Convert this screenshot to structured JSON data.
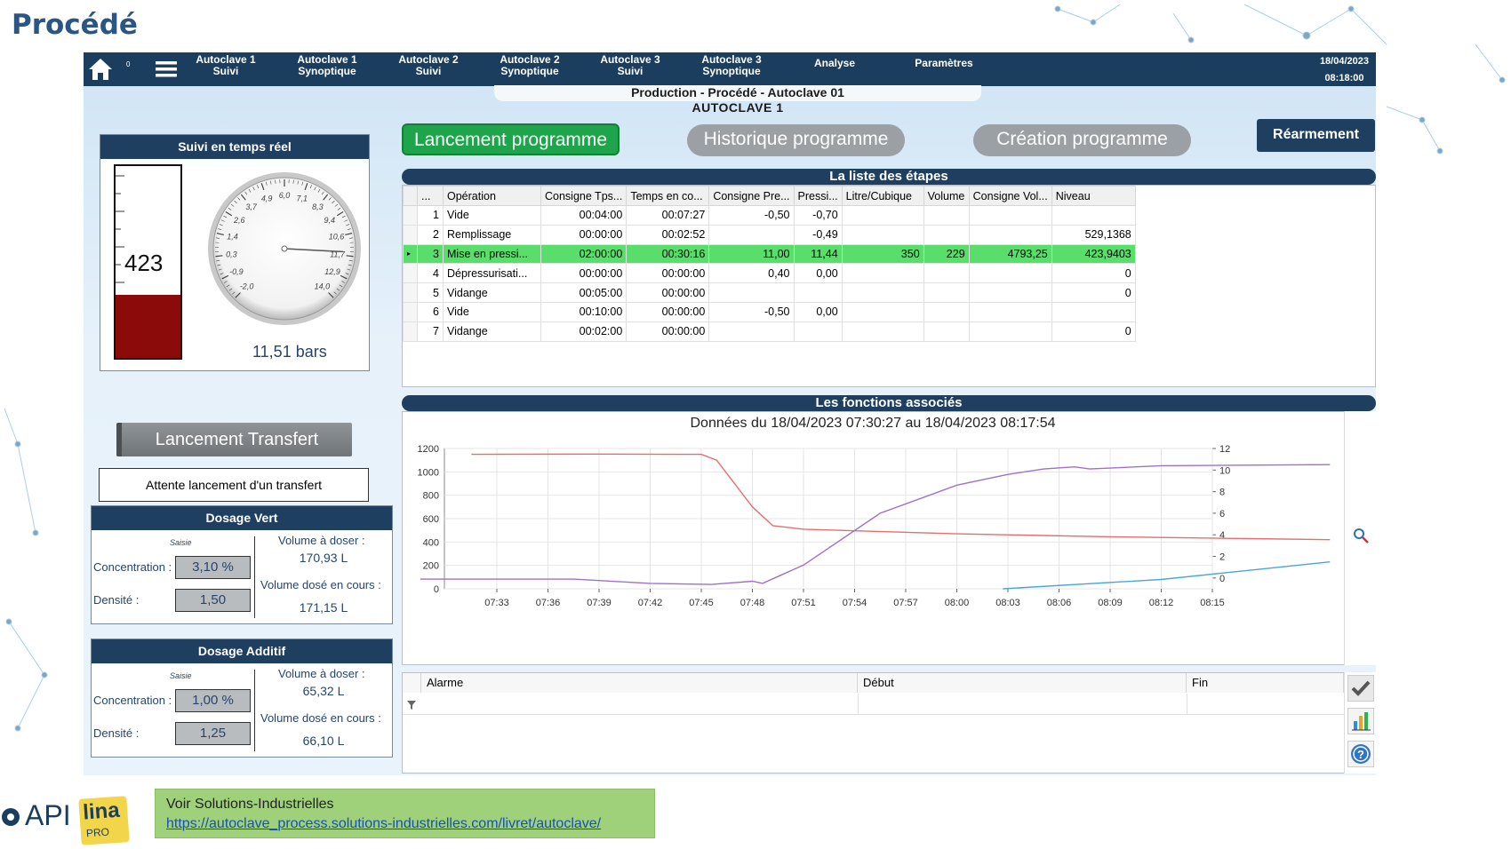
{
  "page_title": "Procédé",
  "nav": {
    "items": [
      {
        "l1": "Autoclave 1",
        "l2": "Suivi"
      },
      {
        "l1": "Autoclave 1",
        "l2": "Synoptique"
      },
      {
        "l1": "Autoclave 2",
        "l2": "Suivi"
      },
      {
        "l1": "Autoclave 2",
        "l2": "Synoptique"
      },
      {
        "l1": "Autoclave 3",
        "l2": "Suivi"
      },
      {
        "l1": "Autoclave 3",
        "l2": "Synoptique"
      },
      {
        "l1": "Analyse",
        "l2": ""
      },
      {
        "l1": "Paramètres",
        "l2": ""
      }
    ],
    "home_badge": "0",
    "date": "18/04/2023",
    "time": "08:18:00"
  },
  "header": {
    "breadcrumb": "Production - Procédé - Autoclave 01",
    "subtitle": "AUTOCLAVE 1"
  },
  "realtime": {
    "title": "Suivi en temps réel",
    "level_value": "423",
    "level_fraction": 0.33,
    "gauge_ticks": [
      "-2,0",
      "-0,9",
      "0,3",
      "1,4",
      "2,6",
      "3,7",
      "4,9",
      "6,0",
      "7,1",
      "8,3",
      "9,4",
      "10,6",
      "11,7",
      "12,9",
      "14,0"
    ],
    "gauge_value": 11.51,
    "pressure_label": "11,51 bars"
  },
  "buttons": {
    "launch_program": "Lancement programme",
    "history_program": "Historique programme",
    "create_program": "Création programme",
    "reset": "Réarmement",
    "launch_transfer": "Lancement Transfert"
  },
  "steps": {
    "title": "La liste des étapes",
    "columns": [
      "...",
      "Opération",
      "Consigne Tps...",
      "Temps en co...",
      "Consigne Pre...",
      "Pressi...",
      "Litre/Cubique",
      "Volume",
      "Consigne Vol...",
      "Niveau"
    ],
    "rows": [
      {
        "n": "1",
        "op": "Vide",
        "ctps": "00:04:00",
        "tco": "00:07:27",
        "cpre": "-0,50",
        "pres": "-0,70",
        "lc": "",
        "vol": "",
        "cvol": "",
        "niv": "",
        "active": false
      },
      {
        "n": "2",
        "op": "Remplissage",
        "ctps": "00:00:00",
        "tco": "00:02:52",
        "cpre": "",
        "pres": "-0,49",
        "lc": "",
        "vol": "",
        "cvol": "",
        "niv": "529,1368",
        "active": false
      },
      {
        "n": "3",
        "op": "Mise en pressi...",
        "ctps": "02:00:00",
        "tco": "00:30:16",
        "cpre": "11,00",
        "pres": "11,44",
        "lc": "350",
        "vol": "229",
        "cvol": "4793,25",
        "niv": "423,9403",
        "active": true
      },
      {
        "n": "4",
        "op": "Dépressurisati...",
        "ctps": "00:00:00",
        "tco": "00:00:00",
        "cpre": "0,40",
        "pres": "0,00",
        "lc": "",
        "vol": "",
        "cvol": "",
        "niv": "0",
        "active": false
      },
      {
        "n": "5",
        "op": "Vidange",
        "ctps": "00:05:00",
        "tco": "00:00:00",
        "cpre": "",
        "pres": "",
        "lc": "",
        "vol": "",
        "cvol": "",
        "niv": "0",
        "active": false
      },
      {
        "n": "6",
        "op": "Vide",
        "ctps": "00:10:00",
        "tco": "00:00:00",
        "cpre": "-0,50",
        "pres": "0,00",
        "lc": "",
        "vol": "",
        "cvol": "",
        "niv": "",
        "active": false
      },
      {
        "n": "7",
        "op": "Vidange",
        "ctps": "00:02:00",
        "tco": "00:00:00",
        "cpre": "",
        "pres": "",
        "lc": "",
        "vol": "",
        "cvol": "",
        "niv": "0",
        "active": false
      }
    ]
  },
  "functions": {
    "title": "Les fonctions associés"
  },
  "chart_data": {
    "type": "line",
    "title": "Données du 18/04/2023 07:30:27 au 18/04/2023 08:17:54",
    "x": [
      "07:33",
      "07:36",
      "07:39",
      "07:42",
      "07:45",
      "07:48",
      "07:51",
      "07:54",
      "07:57",
      "08:00",
      "08:03",
      "08:06",
      "08:09",
      "08:12",
      "08:15"
    ],
    "ylim_left": [
      0,
      1200
    ],
    "yticks_left": [
      "0",
      "200",
      "400",
      "600",
      "800",
      "1000",
      "1200"
    ],
    "ylim_right": [
      -1,
      12
    ],
    "yticks_right": [
      "0",
      "2",
      "4",
      "6",
      "8",
      "10",
      "12"
    ],
    "grid": true,
    "series": [
      {
        "color": "#e07070",
        "axis": "left",
        "points": [
          [
            -0.5,
            1150
          ],
          [
            2,
            1152
          ],
          [
            4,
            1150
          ],
          [
            4.3,
            1100
          ],
          [
            5,
            700
          ],
          [
            5.4,
            540
          ],
          [
            6,
            510
          ],
          [
            9,
            470
          ],
          [
            12,
            445
          ],
          [
            16.3,
            420
          ]
        ]
      },
      {
        "color": "#a070c8",
        "axis": "right",
        "points": [
          [
            -1.5,
            -0.1
          ],
          [
            1.5,
            -0.1
          ],
          [
            3,
            -0.5
          ],
          [
            4.2,
            -0.6
          ],
          [
            5,
            -0.3
          ],
          [
            5.2,
            -0.5
          ],
          [
            6,
            1.2
          ],
          [
            7.5,
            6
          ],
          [
            9,
            8.6
          ],
          [
            10,
            9.6
          ],
          [
            10.7,
            10.1
          ],
          [
            11.3,
            10.3
          ],
          [
            11.6,
            10.1
          ],
          [
            13,
            10.4
          ],
          [
            16.3,
            10.5
          ]
        ]
      },
      {
        "color": "#4aa6d6",
        "axis": "left",
        "points": [
          [
            9.9,
            0
          ],
          [
            13,
            80
          ],
          [
            16.3,
            230
          ]
        ]
      }
    ]
  },
  "alarms": {
    "columns": [
      "Alarme",
      "Début",
      "Fin"
    ]
  },
  "transfer": {
    "status": "Attente lancement d'un transfert"
  },
  "dosage_vert": {
    "title": "Dosage Vert",
    "saisie": "Saisie",
    "conc_label": "Concentration :",
    "conc_value": "3,10 %",
    "dens_label": "Densité :",
    "dens_value": "1,50",
    "vol_to_dose_label": "Volume à doser :",
    "vol_to_dose": "170,93 L",
    "vol_dosed_label": "Volume dosé en cours :",
    "vol_dosed": "171,15 L"
  },
  "dosage_additif": {
    "title": "Dosage Additif",
    "saisie": "Saisie",
    "conc_label": "Concentration :",
    "conc_value": "1,00 %",
    "dens_label": "Densité :",
    "dens_value": "1,25",
    "vol_to_dose_label": "Volume à doser :",
    "vol_to_dose": "65,32 L",
    "vol_dosed_label": "Volume dosé en cours :",
    "vol_dosed": "66,10 L"
  },
  "footer": {
    "link_title": "Voir Solutions-Industrielles",
    "link_url": "https://autoclave_process.solutions-industrielles.com/livret/autoclave/",
    "logo_api": "API",
    "logo_lina": "lina",
    "logo_pro": "PRO"
  },
  "colors": {
    "nav": "#1c3e5e",
    "active_row": "#59dd6b",
    "launch_green": "#1ea44a",
    "thermo_fill": "#8b0a0a"
  }
}
